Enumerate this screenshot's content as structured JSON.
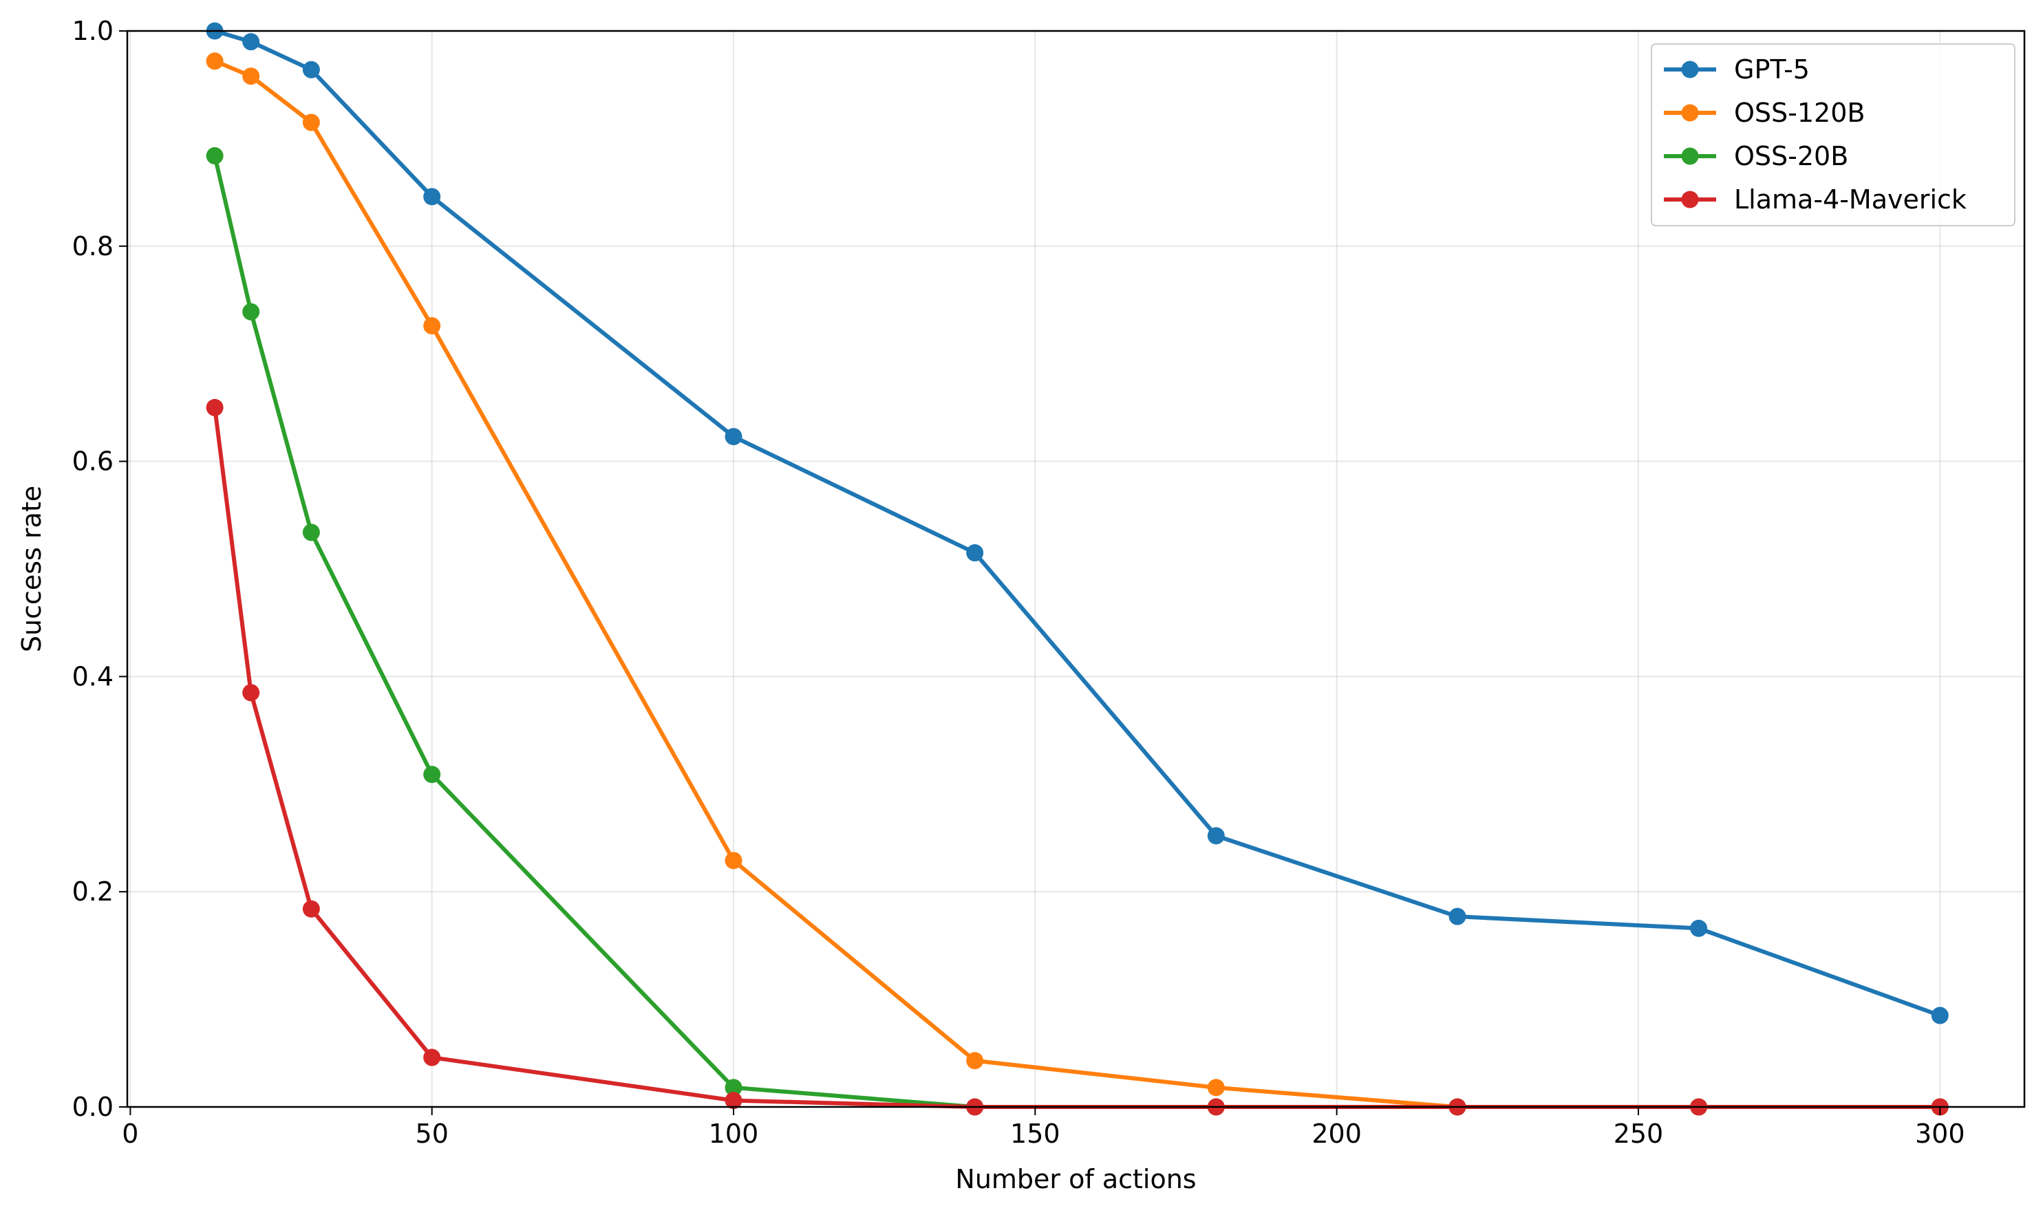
{
  "chart_data": {
    "type": "line",
    "xlabel": "Number of actions",
    "ylabel": "Success rate",
    "xlim": [
      -0.5,
      314
    ],
    "ylim": [
      0,
      1.0
    ],
    "xticks": [
      "0",
      "50",
      "100",
      "150",
      "200",
      "250",
      "300"
    ],
    "yticks": [
      "0.0",
      "0.2",
      "0.4",
      "0.6",
      "0.8",
      "1.0"
    ],
    "grid": true,
    "legend_position": "top-right",
    "x": [
      14,
      20,
      30,
      50,
      100,
      140,
      180,
      220,
      260,
      300
    ],
    "series": [
      {
        "name": "GPT-5",
        "color": "#1f77b4",
        "values": [
          1.0,
          0.99,
          0.964,
          0.846,
          0.623,
          0.515,
          0.252,
          0.177,
          0.166,
          0.085
        ]
      },
      {
        "name": "OSS-120B",
        "color": "#ff7f0e",
        "values": [
          0.972,
          0.958,
          0.915,
          0.726,
          0.229,
          0.043,
          0.018,
          0.0,
          0.0,
          0.0
        ]
      },
      {
        "name": "OSS-20B",
        "color": "#2ca02c",
        "values": [
          0.884,
          0.739,
          0.534,
          0.309,
          0.018,
          0.0,
          0.0,
          0.0,
          0.0,
          0.0
        ]
      },
      {
        "name": "Llama-4-Maverick",
        "color": "#d62728",
        "values": [
          0.65,
          0.385,
          0.184,
          0.046,
          0.006,
          0.0,
          0.0,
          0.0,
          0.0,
          0.0
        ]
      }
    ]
  }
}
